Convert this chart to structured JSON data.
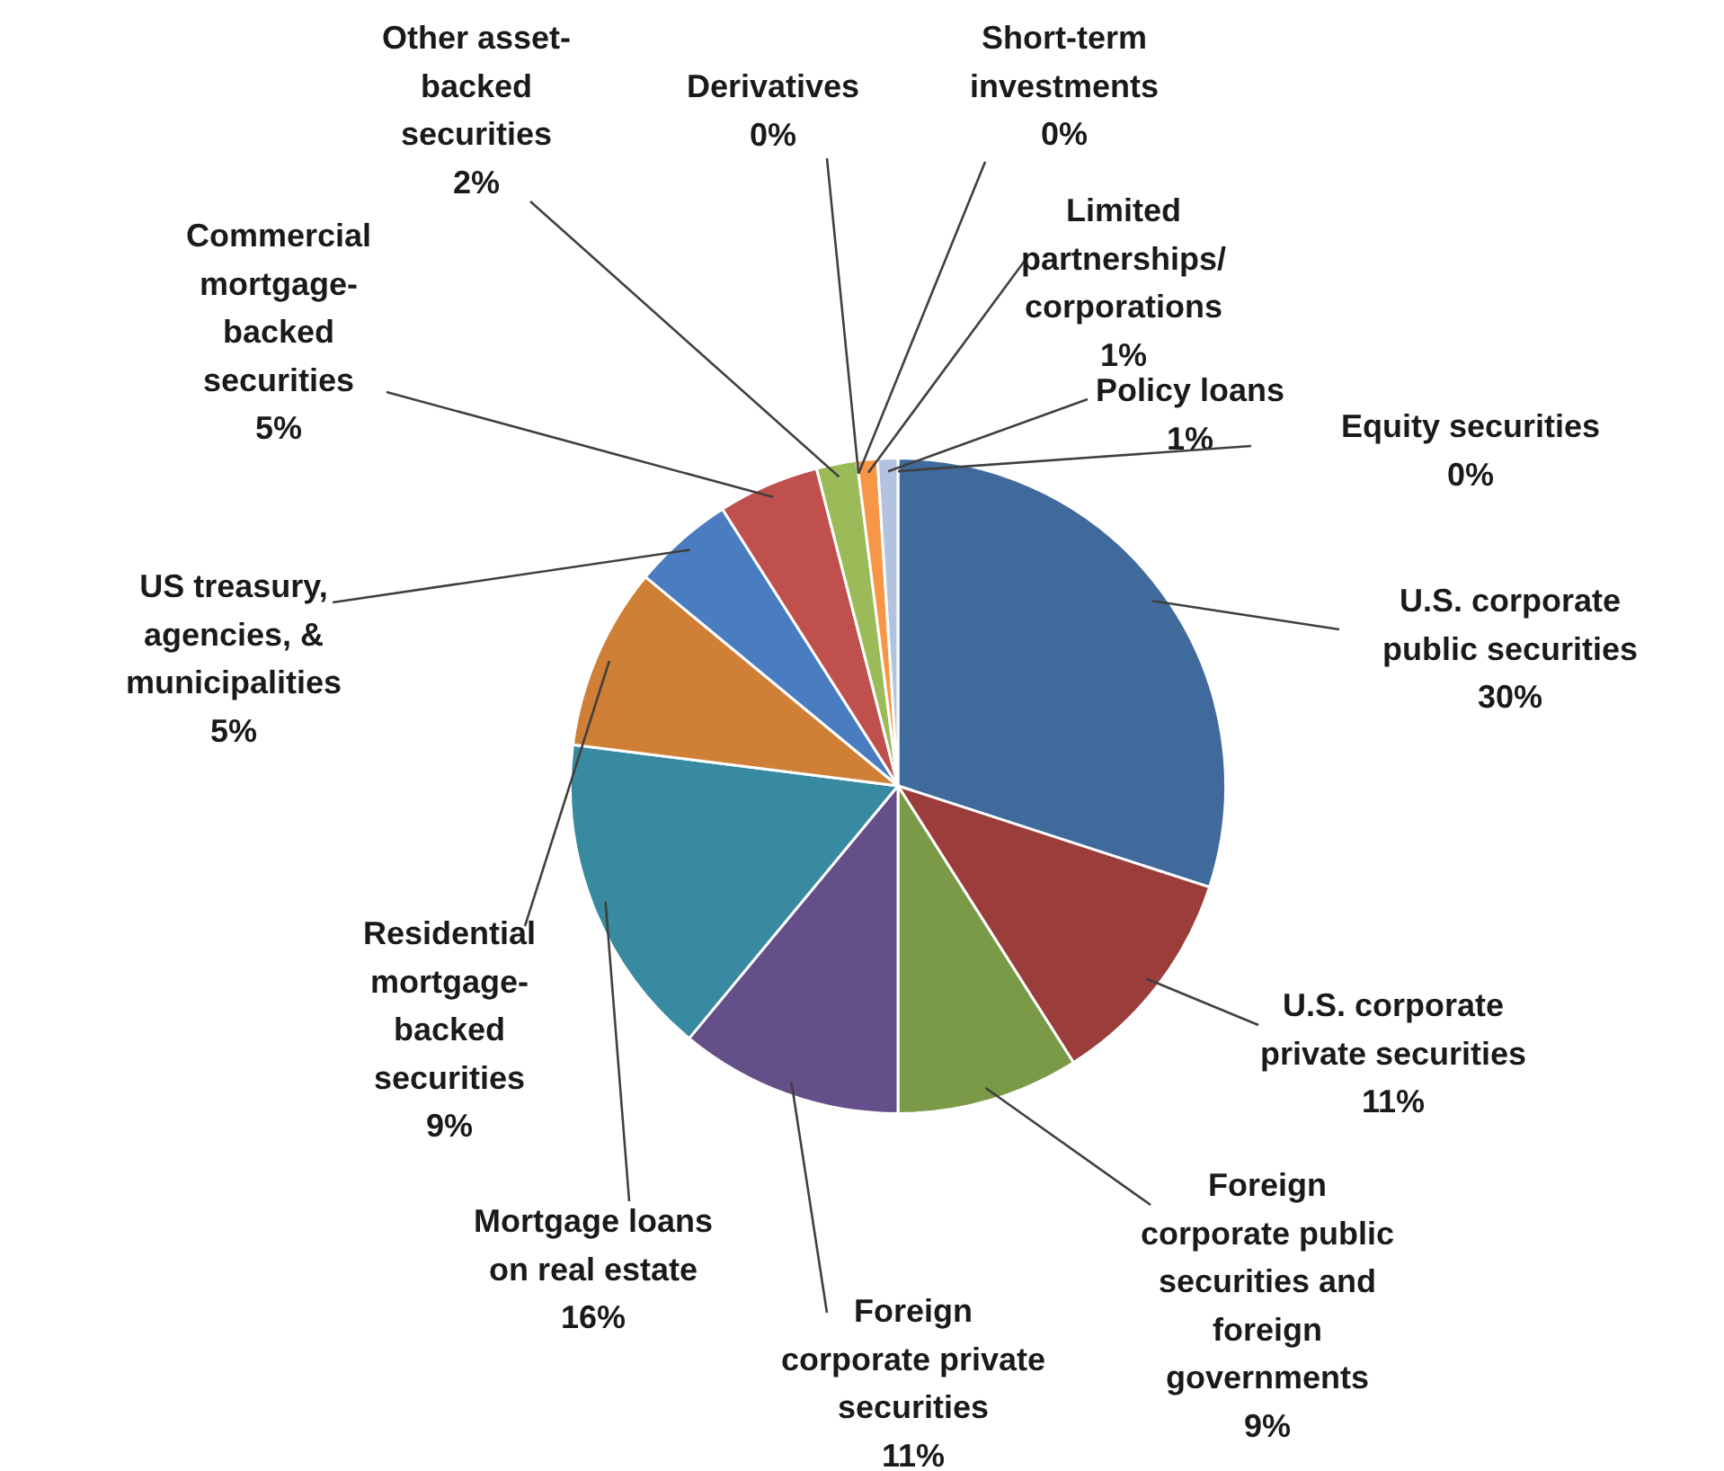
{
  "chart_data": {
    "type": "pie",
    "categories": [
      "U.S. corporate public securities",
      "U.S. corporate private securities",
      "Foreign corporate public securities and foreign governments",
      "Foreign corporate private securities",
      "Mortgage loans on real estate",
      "Residential mortgage-backed securities",
      "US treasury, agencies, & municipalities",
      "Commercial mortgage-backed securities",
      "Other asset-backed securities",
      "Derivatives",
      "Short-term investments",
      "Limited partnerships/corporations",
      "Policy loans",
      "Equity securities"
    ],
    "values": [
      30,
      11,
      9,
      11,
      16,
      9,
      5,
      5,
      2,
      0,
      0,
      1,
      1,
      0
    ],
    "colors": [
      "#3f6a9b",
      "#9b3d3b",
      "#7b9a47",
      "#654f88",
      "#378a9f",
      "#d07f37",
      "#4a7dc0",
      "#c0504d",
      "#9bbb59",
      "#8064a2",
      "#4bacc6",
      "#f79646",
      "#b3c2df",
      "#d9d9d9"
    ],
    "value_labels": [
      "30%",
      "11%",
      "9%",
      "11%",
      "16%",
      "9%",
      "5%",
      "5%",
      "2%",
      "0%",
      "0%",
      "1%",
      "1%",
      "0%"
    ],
    "legend": false
  }
}
